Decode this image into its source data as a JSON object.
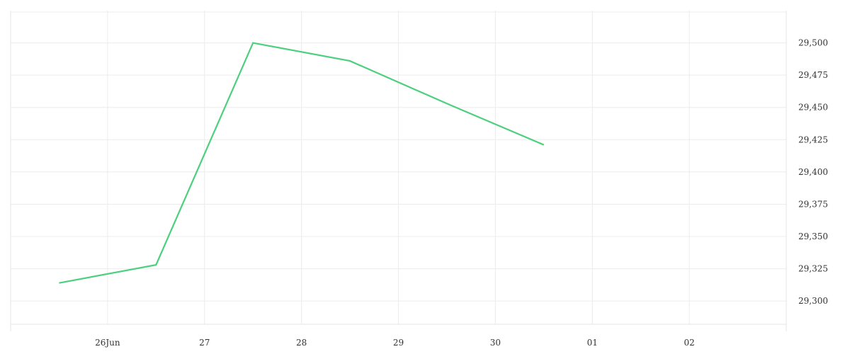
{
  "chart_data": {
    "type": "line",
    "x": [
      "2024-06-25T12:00",
      "2024-06-26T12:00",
      "2024-06-27T12:00",
      "2024-06-28T12:00",
      "2024-06-29T12:00",
      "2024-06-30T12:00"
    ],
    "series": [
      {
        "values": [
          29314,
          29328,
          29500,
          29486,
          29453,
          29421
        ],
        "color": "#4cd07d"
      }
    ],
    "x_ticks": [
      {
        "date": "2024-06-26",
        "label": "26Jun"
      },
      {
        "date": "2024-06-27",
        "label": "27"
      },
      {
        "date": "2024-06-28",
        "label": "28"
      },
      {
        "date": "2024-06-29",
        "label": "29"
      },
      {
        "date": "2024-06-30",
        "label": "30"
      },
      {
        "date": "2024-07-01",
        "label": "01"
      },
      {
        "date": "2024-07-02",
        "label": "02"
      }
    ],
    "y_ticks": [
      {
        "value": 29300,
        "label": "29,300"
      },
      {
        "value": 29325,
        "label": "29,325"
      },
      {
        "value": 29350,
        "label": "29,350"
      },
      {
        "value": 29375,
        "label": "29,375"
      },
      {
        "value": 29400,
        "label": "29,400"
      },
      {
        "value": 29425,
        "label": "29,425"
      },
      {
        "value": 29450,
        "label": "29,450"
      },
      {
        "value": 29475,
        "label": "29,475"
      },
      {
        "value": 29500,
        "label": "29,500"
      }
    ],
    "xlim": [
      "2024-06-25",
      "2024-07-03"
    ],
    "ylim": [
      29282,
      29525
    ],
    "y_axis_position": "right",
    "grid": true,
    "title": "",
    "xlabel": "",
    "ylabel": ""
  }
}
